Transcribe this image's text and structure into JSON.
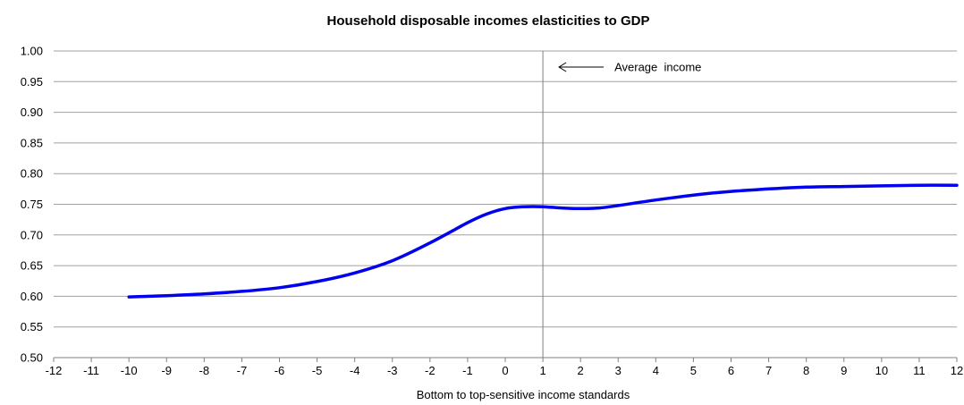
{
  "chart_data": {
    "type": "line",
    "title": "Household disposable incomes elasticities to GDP",
    "xlabel": "Bottom to top-sensitive income standards",
    "ylabel": "",
    "xlim": [
      -12,
      12
    ],
    "ylim": [
      0.5,
      1.0
    ],
    "xticks": [
      -12,
      -11,
      -10,
      -9,
      -8,
      -7,
      -6,
      -5,
      -4,
      -3,
      -2,
      -1,
      0,
      1,
      2,
      3,
      4,
      5,
      6,
      7,
      8,
      9,
      10,
      11,
      12
    ],
    "yticks": [
      "0.50",
      "0.55",
      "0.60",
      "0.65",
      "0.70",
      "0.75",
      "0.80",
      "0.85",
      "0.90",
      "0.95",
      "1.00"
    ],
    "grid": "horizontal",
    "series": [
      {
        "color": "#0000ee",
        "x": [
          -10,
          -9,
          -8,
          -7,
          -6,
          -5,
          -4,
          -3,
          -2,
          -1,
          -0.5,
          0,
          0.5,
          1,
          1.5,
          2,
          2.5,
          3,
          4,
          5,
          6,
          7,
          8,
          9,
          10,
          11,
          12
        ],
        "y": [
          0.599,
          0.601,
          0.604,
          0.608,
          0.614,
          0.624,
          0.638,
          0.658,
          0.687,
          0.72,
          0.734,
          0.743,
          0.746,
          0.746,
          0.744,
          0.743,
          0.744,
          0.748,
          0.757,
          0.765,
          0.771,
          0.775,
          0.778,
          0.779,
          0.78,
          0.781,
          0.781
        ]
      }
    ],
    "reference_line": {
      "x": 1,
      "color": "#808080"
    },
    "annotation": {
      "text": "Average  income",
      "arrow": "left"
    }
  }
}
